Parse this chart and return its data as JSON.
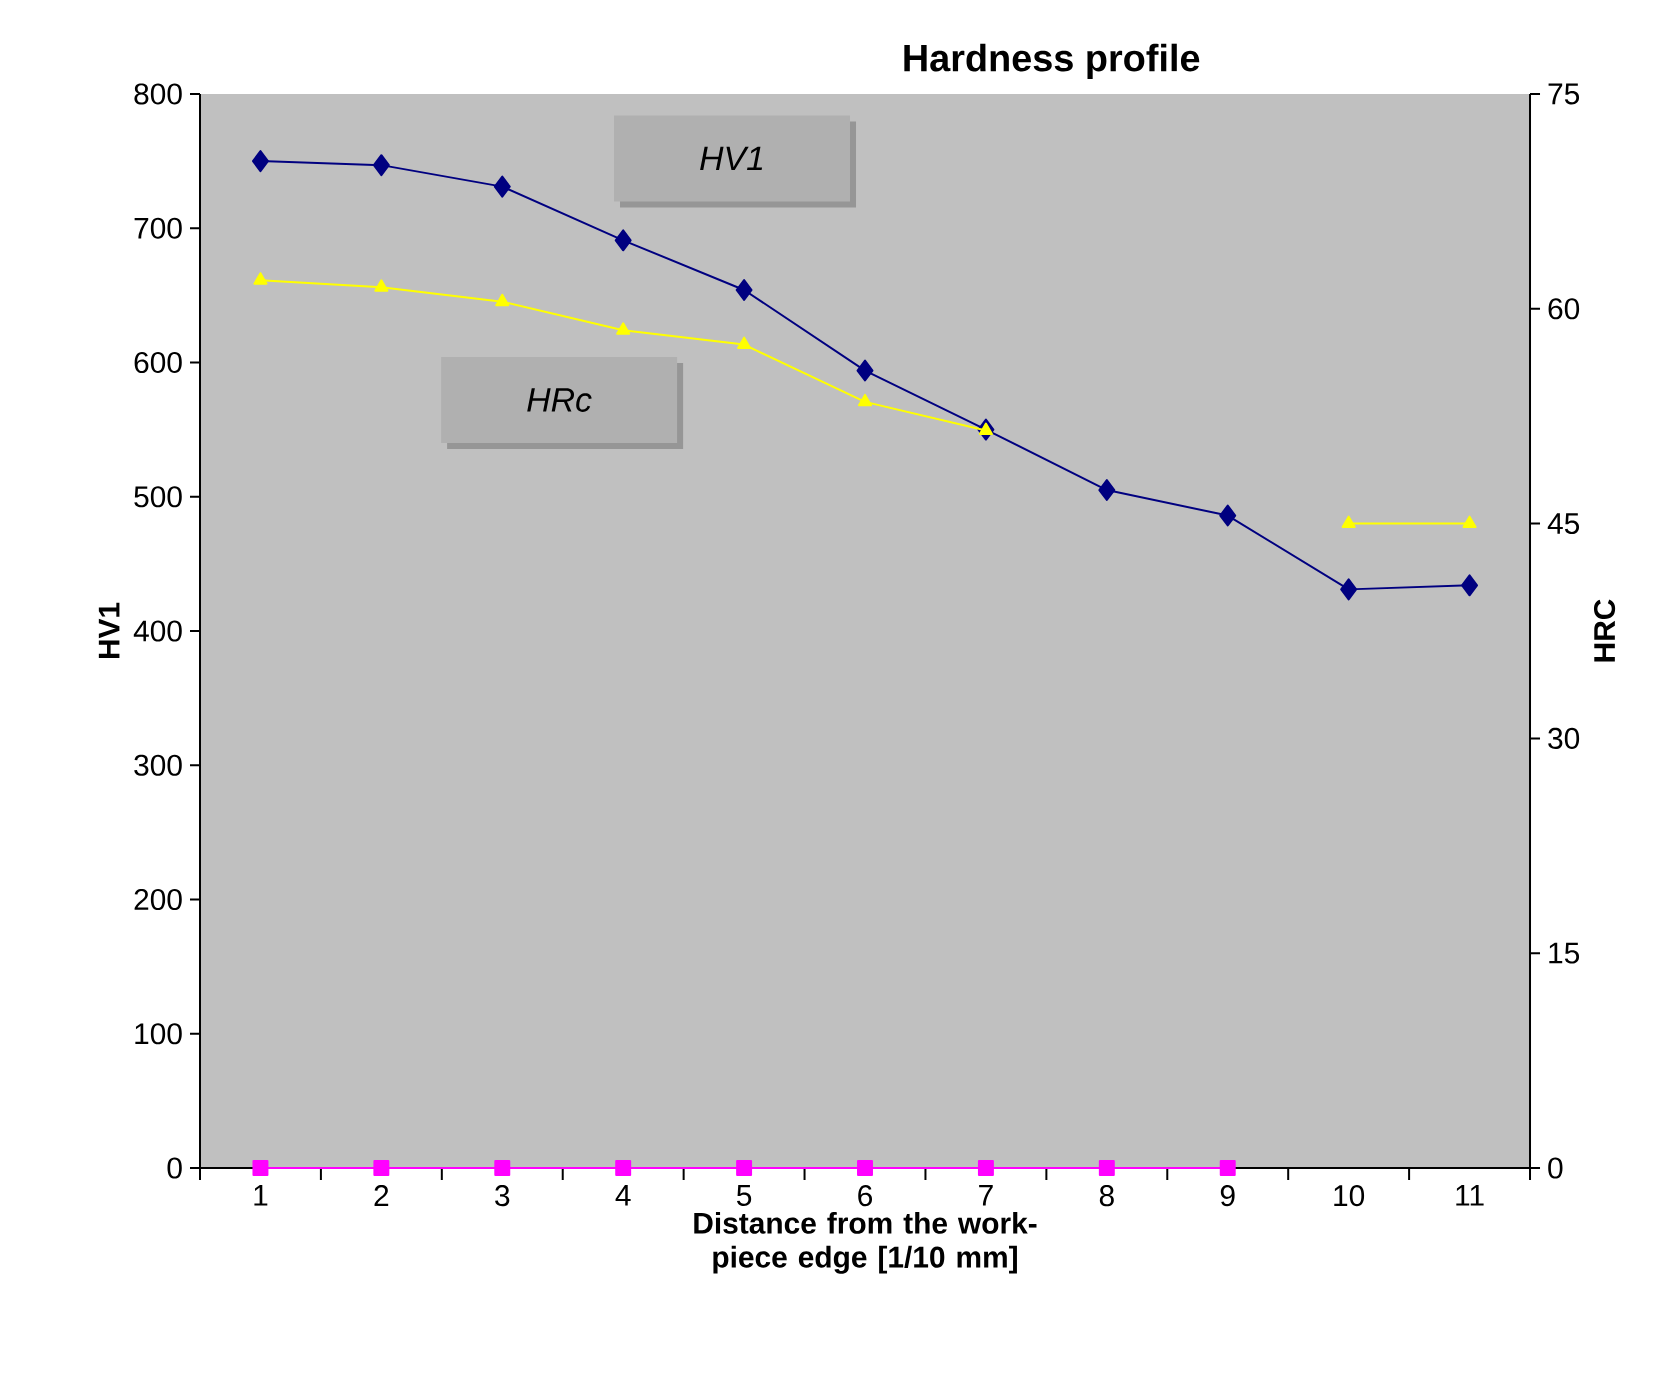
{
  "chart_data": {
    "type": "line",
    "title": "Hardness profile",
    "xlabel": "Distance from the work-piece edge [1/10 mm]",
    "ylabel": "HV1",
    "y2label": "HRC",
    "categories": [
      "1",
      "2",
      "3",
      "4",
      "5",
      "6",
      "7",
      "8",
      "9",
      "10",
      "11"
    ],
    "ylim": [
      0,
      800
    ],
    "yticks": [
      0,
      100,
      200,
      300,
      400,
      500,
      600,
      700,
      800
    ],
    "y2lim": [
      0,
      75
    ],
    "y2ticks": [
      0,
      15,
      30,
      45,
      60,
      75
    ],
    "series": [
      {
        "name": "HV1",
        "color": "#000080",
        "marker": "diamond",
        "values": [
          750,
          747,
          731,
          691,
          654,
          594,
          550,
          505,
          486,
          431,
          434
        ]
      },
      {
        "name": "HRc",
        "color": "#ffff00",
        "marker": "triangle",
        "axis": "y2",
        "values": [
          62,
          61.5,
          60.5,
          58.5,
          57.5,
          53.5,
          51.5,
          null,
          null,
          45,
          45
        ]
      },
      {
        "color": "#ff00ff",
        "marker": "square",
        "values": [
          0,
          0,
          0,
          0,
          0,
          0,
          0,
          0,
          0,
          null,
          null
        ]
      }
    ]
  }
}
